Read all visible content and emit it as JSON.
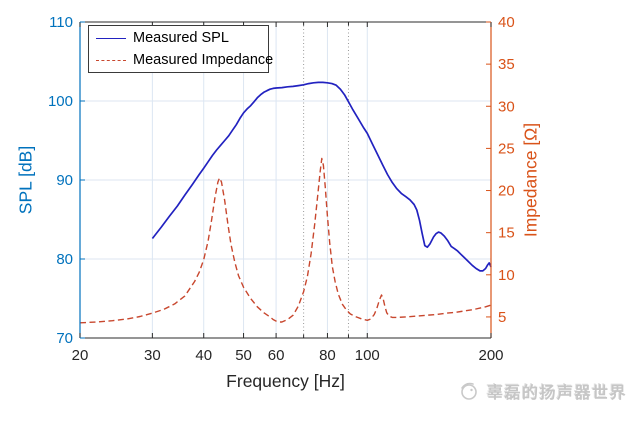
{
  "watermark": {
    "text": "辜磊的扬声器世界"
  },
  "chart_data": {
    "type": "line",
    "title": "",
    "x_axis": {
      "label": "Frequency [Hz]",
      "scale": "log",
      "min": 20,
      "max": 200,
      "major_ticks": [
        20,
        30,
        40,
        50,
        60,
        80,
        100,
        200
      ],
      "minor_ticks": [
        70,
        90
      ],
      "gridlines": [
        30,
        40,
        50,
        60,
        80,
        100
      ]
    },
    "y_left": {
      "label": "SPL [dB]",
      "min": 70,
      "max": 110,
      "ticks": [
        70,
        80,
        90,
        100,
        110
      ],
      "gridlines": [
        80,
        90,
        100
      ],
      "color": "#0072BD"
    },
    "y_right": {
      "label": "Impedance [Ω]",
      "min": 2.5,
      "max": 40,
      "ticks": [
        5,
        10,
        15,
        20,
        25,
        30,
        35,
        40
      ],
      "color": "#D95319"
    },
    "reference_lines": {
      "x_values": [
        70,
        90
      ],
      "style": "dotted",
      "color": "#9a9a9a"
    },
    "style": {
      "frame": "#2b2b2b",
      "grid": "#DCE6F2",
      "background": "#ffffff",
      "legend_position": "top-left"
    },
    "series": [
      {
        "name": "Measured SPL",
        "axis": "left",
        "color": "#2222C0",
        "style": "solid",
        "points": [
          [
            30,
            82.6
          ],
          [
            31.5,
            84.0
          ],
          [
            33,
            85.4
          ],
          [
            34.5,
            86.7
          ],
          [
            36,
            88.1
          ],
          [
            37.5,
            89.4
          ],
          [
            39,
            90.7
          ],
          [
            40,
            91.5
          ],
          [
            41,
            92.3
          ],
          [
            42,
            93.1
          ],
          [
            43,
            93.8
          ],
          [
            44,
            94.4
          ],
          [
            45,
            95.0
          ],
          [
            46,
            95.6
          ],
          [
            47,
            96.3
          ],
          [
            48,
            97.0
          ],
          [
            49,
            97.8
          ],
          [
            50,
            98.5
          ],
          [
            51,
            99.0
          ],
          [
            52,
            99.4
          ],
          [
            53,
            99.9
          ],
          [
            54,
            100.4
          ],
          [
            55,
            100.8
          ],
          [
            56,
            101.1
          ],
          [
            57,
            101.3
          ],
          [
            58,
            101.5
          ],
          [
            59,
            101.6
          ],
          [
            60,
            101.65
          ],
          [
            62,
            101.7
          ],
          [
            64,
            101.8
          ],
          [
            66,
            101.85
          ],
          [
            68,
            101.95
          ],
          [
            70,
            102.05
          ],
          [
            72,
            102.2
          ],
          [
            74,
            102.3
          ],
          [
            76,
            102.35
          ],
          [
            78,
            102.35
          ],
          [
            80,
            102.3
          ],
          [
            82,
            102.2
          ],
          [
            84,
            102.0
          ],
          [
            86,
            101.5
          ],
          [
            88,
            100.8
          ],
          [
            90,
            99.9
          ],
          [
            92,
            99.0
          ],
          [
            95,
            97.8
          ],
          [
            98,
            96.6
          ],
          [
            100,
            95.9
          ],
          [
            103,
            94.5
          ],
          [
            106,
            93.2
          ],
          [
            109,
            91.9
          ],
          [
            112,
            90.7
          ],
          [
            115,
            89.7
          ],
          [
            118,
            88.9
          ],
          [
            121,
            88.3
          ],
          [
            124,
            87.9
          ],
          [
            127,
            87.5
          ],
          [
            130,
            86.9
          ],
          [
            132,
            86.2
          ],
          [
            134,
            84.9
          ],
          [
            136,
            83.2
          ],
          [
            138,
            81.7
          ],
          [
            140,
            81.5
          ],
          [
            142,
            81.9
          ],
          [
            145,
            82.8
          ],
          [
            147,
            83.2
          ],
          [
            149,
            83.4
          ],
          [
            151,
            83.3
          ],
          [
            154,
            82.9
          ],
          [
            157,
            82.3
          ],
          [
            160,
            81.6
          ],
          [
            163,
            81.3
          ],
          [
            166,
            81.0
          ],
          [
            169,
            80.6
          ],
          [
            172,
            80.2
          ],
          [
            176,
            79.7
          ],
          [
            180,
            79.2
          ],
          [
            184,
            78.8
          ],
          [
            188,
            78.5
          ],
          [
            191,
            78.5
          ],
          [
            194,
            78.8
          ],
          [
            196,
            79.2
          ],
          [
            198,
            79.5
          ],
          [
            200,
            79.0
          ]
        ]
      },
      {
        "name": "Measured Impedance",
        "axis": "right",
        "color": "#C8472E",
        "style": "dashed",
        "points": [
          [
            20,
            4.3
          ],
          [
            22,
            4.4
          ],
          [
            24,
            4.55
          ],
          [
            26,
            4.75
          ],
          [
            28,
            5.05
          ],
          [
            30,
            5.45
          ],
          [
            32,
            5.9
          ],
          [
            34,
            6.55
          ],
          [
            36,
            7.5
          ],
          [
            38,
            9.2
          ],
          [
            39,
            10.3
          ],
          [
            40,
            11.8
          ],
          [
            41,
            14.0
          ],
          [
            41.8,
            16.5
          ],
          [
            42.6,
            19.2
          ],
          [
            43.3,
            21.0
          ],
          [
            43.7,
            21.5
          ],
          [
            44.2,
            21.0
          ],
          [
            45,
            18.8
          ],
          [
            45.8,
            16.0
          ],
          [
            46.6,
            13.6
          ],
          [
            47.6,
            11.5
          ],
          [
            48.6,
            9.9
          ],
          [
            50,
            8.5
          ],
          [
            52,
            7.2
          ],
          [
            54,
            6.2
          ],
          [
            56,
            5.5
          ],
          [
            58,
            5.0
          ],
          [
            59,
            4.7
          ],
          [
            60,
            4.5
          ],
          [
            61,
            4.4
          ],
          [
            62,
            4.4
          ],
          [
            64,
            4.7
          ],
          [
            66,
            5.2
          ],
          [
            68,
            6.3
          ],
          [
            70,
            8.0
          ],
          [
            71.5,
            9.8
          ],
          [
            73,
            12.5
          ],
          [
            74.5,
            16.0
          ],
          [
            75.8,
            19.5
          ],
          [
            76.8,
            22.3
          ],
          [
            77.5,
            23.8
          ],
          [
            78.2,
            23.0
          ],
          [
            79,
            20.5
          ],
          [
            80,
            17.0
          ],
          [
            81,
            13.8
          ],
          [
            82.2,
            11.0
          ],
          [
            83.5,
            9.2
          ],
          [
            85,
            7.7
          ],
          [
            87,
            6.5
          ],
          [
            89,
            5.8
          ],
          [
            91,
            5.35
          ],
          [
            94,
            5.0
          ],
          [
            97,
            4.75
          ],
          [
            100,
            4.6
          ],
          [
            102,
            4.75
          ],
          [
            104,
            5.3
          ],
          [
            105.5,
            6.0
          ],
          [
            107,
            7.0
          ],
          [
            108.3,
            7.6
          ],
          [
            109.3,
            7.2
          ],
          [
            110.3,
            6.3
          ],
          [
            111.5,
            5.5
          ],
          [
            113,
            5.1
          ],
          [
            115,
            4.95
          ],
          [
            118,
            4.95
          ],
          [
            125,
            5.0
          ],
          [
            132,
            5.1
          ],
          [
            140,
            5.2
          ],
          [
            148,
            5.3
          ],
          [
            156,
            5.45
          ],
          [
            164,
            5.55
          ],
          [
            172,
            5.7
          ],
          [
            180,
            5.85
          ],
          [
            188,
            6.05
          ],
          [
            194,
            6.2
          ],
          [
            200,
            6.4
          ]
        ]
      }
    ]
  }
}
